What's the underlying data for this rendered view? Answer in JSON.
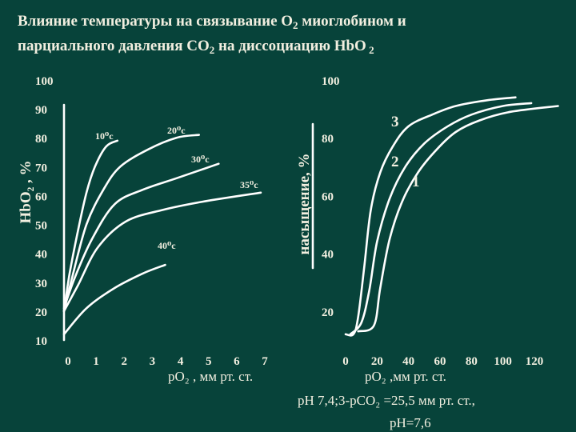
{
  "title": {
    "line1_a": "Влияние температуры на связывание O",
    "line1_sub": "2",
    "line1_b": " миоглобином и",
    "line2_a": "парциального давления CO",
    "line2_sub": "2",
    "line2_b": " на диссоциацию HbO",
    "line2_sub2": " 2"
  },
  "chart_data": [
    {
      "type": "line",
      "ylabel": "HbO₂ , %",
      "xlabel": "pO₂ , мм рт. ст.",
      "x_ticks": [
        "0",
        "1",
        "2",
        "3",
        "4",
        "5",
        "6",
        "7"
      ],
      "y_ticks": [
        "100",
        "90",
        "80",
        "70",
        "60",
        "50",
        "40",
        "30",
        "20",
        "10"
      ],
      "xlim": [
        0,
        7
      ],
      "ylim": [
        10,
        100
      ],
      "grid": false,
      "series": [
        {
          "annotation": "10⁰c",
          "x": [
            0,
            0.2,
            0.5,
            0.8,
            1.1,
            1.5,
            1.9
          ],
          "y": [
            20,
            33,
            48,
            61,
            70,
            77,
            79
          ]
        },
        {
          "annotation": "20⁰c",
          "x": [
            0,
            0.3,
            0.8,
            1.4,
            2.0,
            3.0,
            4.0,
            4.8
          ],
          "y": [
            20,
            32,
            50,
            62,
            70,
            76,
            80,
            81
          ]
        },
        {
          "annotation": "30⁰c",
          "x": [
            0,
            0.4,
            1.0,
            1.8,
            2.8,
            4.0,
            5.5
          ],
          "y": [
            21,
            32,
            45,
            57,
            62,
            66,
            71
          ]
        },
        {
          "annotation": "35⁰c",
          "x": [
            0,
            0.5,
            1.2,
            2.2,
            3.5,
            5.0,
            7.0
          ],
          "y": [
            20,
            29,
            42,
            51,
            55,
            58,
            61
          ]
        },
        {
          "annotation": "40⁰c",
          "x": [
            0,
            0.8,
            1.8,
            2.8,
            3.6
          ],
          "y": [
            12,
            21,
            28,
            33,
            36
          ]
        }
      ]
    },
    {
      "type": "line",
      "ylabel": "насыщение, %",
      "xlabel": "pO₂ ,мм рт. ст.",
      "x_ticks": [
        "0",
        "20",
        "40",
        "60",
        "80",
        "100",
        "120"
      ],
      "y_ticks": [
        "100",
        "80",
        "60",
        "40",
        "20"
      ],
      "xlim": [
        0,
        120
      ],
      "ylim": [
        10,
        100
      ],
      "grid": false,
      "series": [
        {
          "annotation": "3",
          "x": [
            0,
            5,
            8,
            12,
            16,
            22,
            30,
            40,
            55,
            70,
            90,
            108
          ],
          "y": [
            12,
            12,
            18,
            36,
            55,
            68,
            77,
            84,
            88,
            91,
            93,
            94
          ]
        },
        {
          "annotation": "2",
          "x": [
            3,
            10,
            15,
            20,
            28,
            38,
            50,
            65,
            80,
            100,
            118
          ],
          "y": [
            12,
            16,
            27,
            44,
            59,
            70,
            78,
            84,
            88,
            91,
            92
          ]
        },
        {
          "annotation": "1",
          "x": [
            8,
            18,
            22,
            28,
            36,
            46,
            58,
            70,
            85,
            105,
            135
          ],
          "y": [
            13,
            15,
            28,
            45,
            58,
            68,
            76,
            82,
            86,
            89,
            91
          ]
        }
      ],
      "note_line1": "pH 7,4;3-pCO₂ =25,5 мм рт. ст.,",
      "note_line2": "pH=7,6"
    }
  ]
}
